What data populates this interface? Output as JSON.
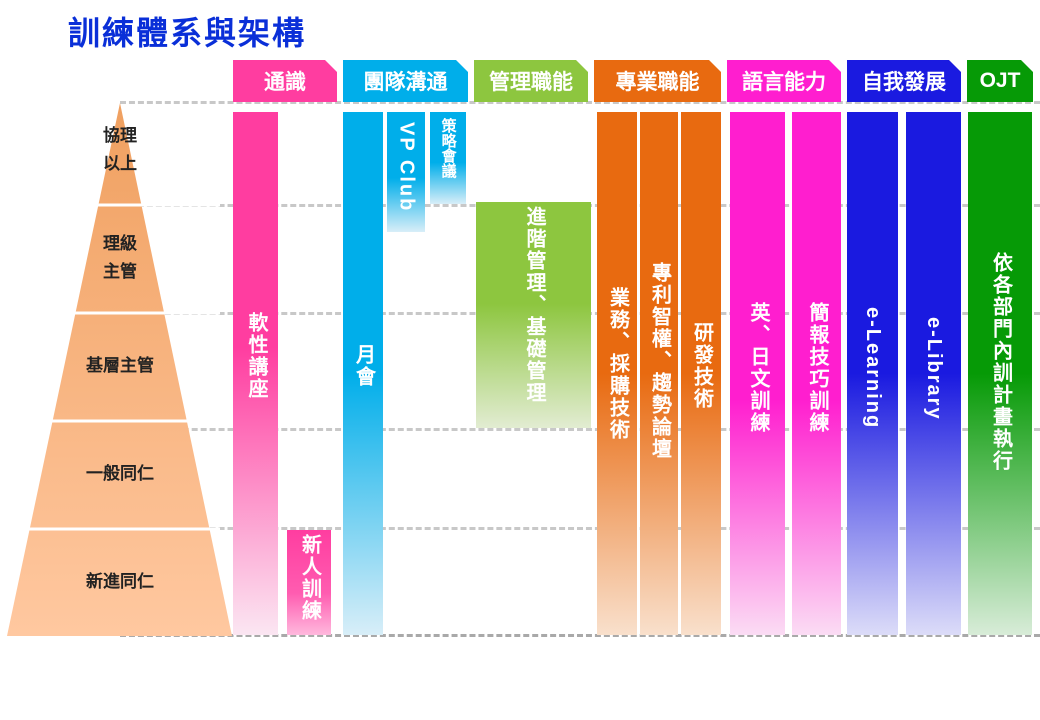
{
  "title": "訓練體系與架構",
  "levels": [
    "協理\n以上",
    "理級\n主管",
    "基層主管",
    "一般同仁",
    "新進同仁"
  ],
  "categories": [
    {
      "label": "通識",
      "color": "#ff3da0"
    },
    {
      "label": "團隊溝通",
      "color": "#00aeea"
    },
    {
      "label": "管理職能",
      "color": "#8dc63f"
    },
    {
      "label": "專業職能",
      "color": "#e86a10"
    },
    {
      "label": "語言能力",
      "color": "#ff1ecf"
    },
    {
      "label": "自我發展",
      "color": "#1a1ae0"
    },
    {
      "label": "OJT",
      "color": "#069a06"
    }
  ],
  "programs": {
    "soft_skills": "軟性講座",
    "new_hire": "新人訓練",
    "monthly": "月會",
    "vp_club": "VP Club",
    "strategy": "策略會議",
    "advanced_mgmt": "進階管理、基礎管理",
    "business": "業務、採購技術",
    "ip": "專利智權、趨勢論壇",
    "rd": "研發技術",
    "lang": "英、日文訓練",
    "presentation": "簡報技巧訓練",
    "elearning": "e-Learning",
    "elibrary": "e-Library",
    "ojt_exec": "依各部門內訓計畫執行"
  },
  "colors": {
    "pyramid_top": "#f0a060",
    "pyramid_bottom": "#ffc8a0",
    "title": "#0a2fd8"
  }
}
